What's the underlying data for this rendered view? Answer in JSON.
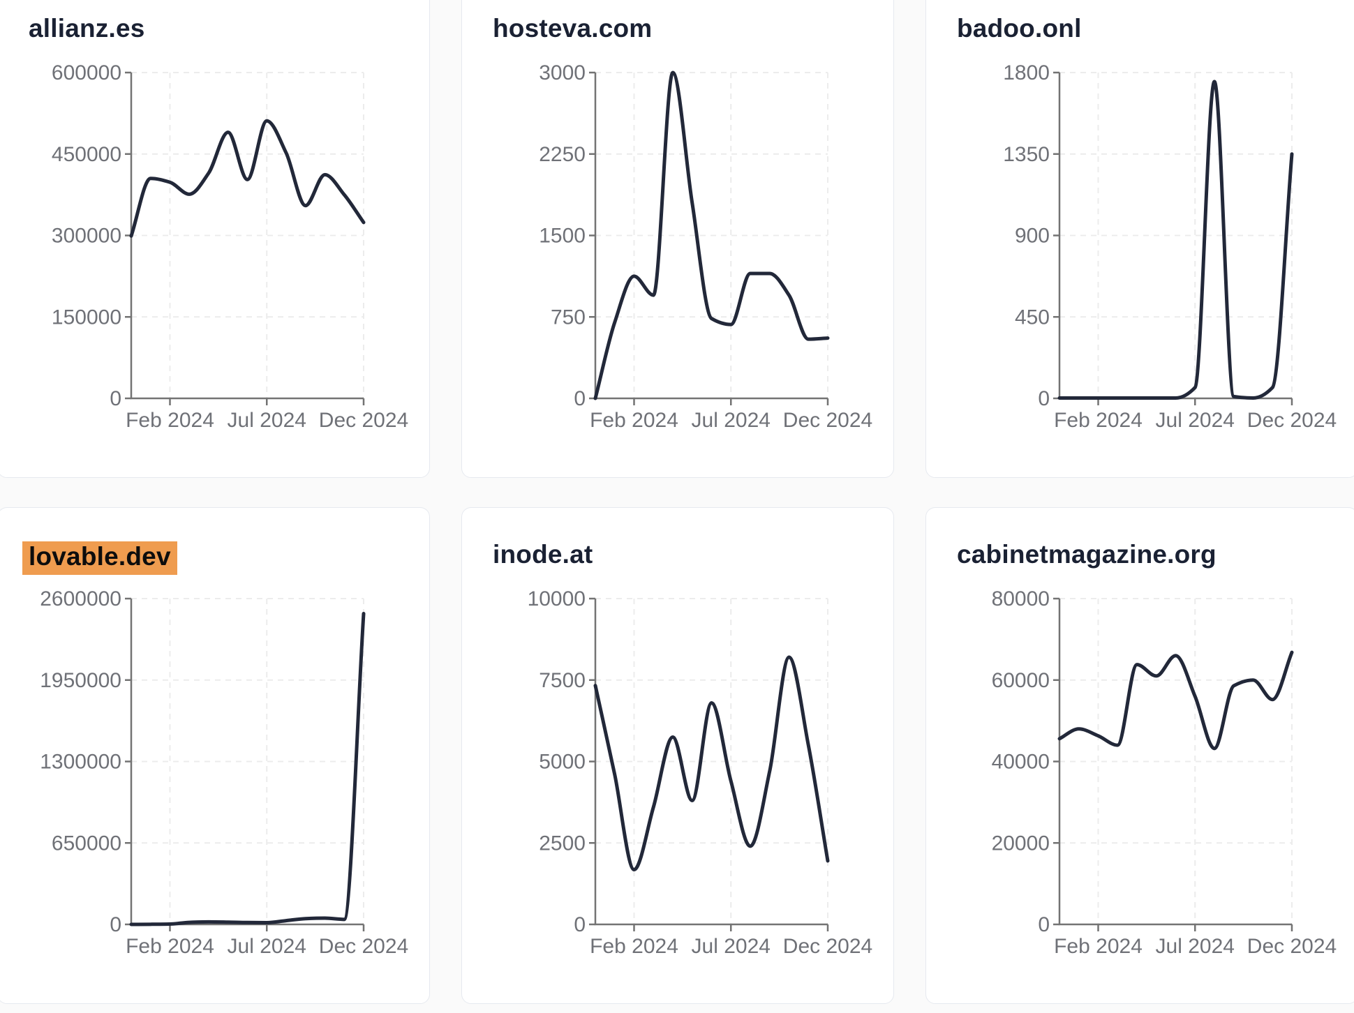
{
  "page": {
    "background": "#fafafa",
    "card": {
      "background": "#ffffff",
      "border_color": "#e6e9ef"
    }
  },
  "style": {
    "line_color": "#222839",
    "axis_color": "#737373",
    "tick_label_color": "#6f7177",
    "grid_color": "#ececec",
    "title_color": "#1a2133",
    "highlight_background": "#ef9c4f",
    "highlight_text_color": "#0d0d0d"
  },
  "x_axis": {
    "tick_labels": [
      "Feb 2024",
      "Jul 2024",
      "Dec 2024"
    ],
    "tick_positions": [
      0.16667,
      0.58333,
      1
    ]
  },
  "chart_data": [
    {
      "type": "line",
      "title": "allianz.es",
      "highlighted": false,
      "x": [
        "Dec 2023",
        "Jan 2024",
        "Feb 2024",
        "Mar 2024",
        "Apr 2024",
        "May 2024",
        "Jun 2024",
        "Jul 2024",
        "Aug 2024",
        "Sep 2024",
        "Oct 2024",
        "Nov 2024",
        "Dec 2024"
      ],
      "values": [
        299000,
        405000,
        398000,
        376000,
        415000,
        490000,
        403000,
        511000,
        452000,
        355000,
        412000,
        375000,
        324000
      ],
      "y_ticks": [
        0,
        150000,
        300000,
        450000,
        600000
      ],
      "ylim": [
        0,
        600000
      ],
      "x_tick_labels": [
        "Feb 2024",
        "Jul 2024",
        "Dec 2024"
      ],
      "grid": true,
      "legend": "none"
    },
    {
      "type": "line",
      "title": "hosteva.com",
      "highlighted": false,
      "x": [
        "Dec 2023",
        "Jan 2024",
        "Feb 2024",
        "Mar 2024",
        "Apr 2024",
        "May 2024",
        "Jun 2024",
        "Jul 2024",
        "Aug 2024",
        "Sep 2024",
        "Oct 2024",
        "Nov 2024",
        "Dec 2024"
      ],
      "values": [
        0,
        700,
        1125,
        950,
        3000,
        1800,
        735,
        680,
        1150,
        1150,
        950,
        545,
        555
      ],
      "y_ticks": [
        0,
        750,
        1500,
        2250,
        3000
      ],
      "ylim": [
        0,
        3000
      ],
      "x_tick_labels": [
        "Feb 2024",
        "Jul 2024",
        "Dec 2024"
      ],
      "grid": true,
      "legend": "none"
    },
    {
      "type": "line",
      "title": "badoo.onl",
      "highlighted": false,
      "x": [
        "Dec 2023",
        "Jan 2024",
        "Feb 2024",
        "Mar 2024",
        "Apr 2024",
        "May 2024",
        "Jun 2024",
        "Jul 2024",
        "Aug 2024",
        "Sep 2024",
        "Oct 2024",
        "Nov 2024",
        "Dec 2024"
      ],
      "values": [
        2,
        2,
        2,
        2,
        2,
        2,
        2,
        60,
        1750,
        10,
        2,
        60,
        1350
      ],
      "y_ticks": [
        0,
        450,
        900,
        1350,
        1800
      ],
      "ylim": [
        0,
        1800
      ],
      "x_tick_labels": [
        "Feb 2024",
        "Jul 2024",
        "Dec 2024"
      ],
      "grid": true,
      "legend": "none"
    },
    {
      "type": "line",
      "title": "lovable.dev",
      "highlighted": true,
      "x": [
        "Dec 2023",
        "Jan 2024",
        "Feb 2024",
        "Mar 2024",
        "Apr 2024",
        "May 2024",
        "Jun 2024",
        "Jul 2024",
        "Aug 2024",
        "Sep 2024",
        "Oct 2024",
        "Nov 2024",
        "Dec 2024"
      ],
      "values": [
        0,
        1000,
        3000,
        16000,
        20000,
        18000,
        15000,
        14000,
        30000,
        46000,
        50000,
        40000,
        2480000
      ],
      "y_ticks": [
        0,
        650000,
        1300000,
        1950000,
        2600000
      ],
      "ylim": [
        0,
        2600000
      ],
      "x_tick_labels": [
        "Feb 2024",
        "Jul 2024",
        "Dec 2024"
      ],
      "grid": true,
      "legend": "none"
    },
    {
      "type": "line",
      "title": "inode.at",
      "highlighted": false,
      "x": [
        "Dec 2023",
        "Jan 2024",
        "Feb 2024",
        "Mar 2024",
        "Apr 2024",
        "May 2024",
        "Jun 2024",
        "Jul 2024",
        "Aug 2024",
        "Sep 2024",
        "Oct 2024",
        "Nov 2024",
        "Dec 2024"
      ],
      "values": [
        7330,
        4600,
        1680,
        3600,
        5750,
        3800,
        6800,
        4400,
        2400,
        4700,
        8200,
        5500,
        1950
      ],
      "y_ticks": [
        0,
        2500,
        5000,
        7500,
        10000
      ],
      "ylim": [
        0,
        10000
      ],
      "x_tick_labels": [
        "Feb 2024",
        "Jul 2024",
        "Dec 2024"
      ],
      "grid": true,
      "legend": "none"
    },
    {
      "type": "line",
      "title": "cabinetmagazine.org",
      "highlighted": false,
      "x": [
        "Dec 2023",
        "Jan 2024",
        "Feb 2024",
        "Mar 2024",
        "Apr 2024",
        "May 2024",
        "Jun 2024",
        "Jul 2024",
        "Aug 2024",
        "Sep 2024",
        "Oct 2024",
        "Nov 2024",
        "Dec 2024"
      ],
      "values": [
        45600,
        48000,
        46300,
        44000,
        63800,
        61000,
        66000,
        56000,
        43200,
        58600,
        60000,
        55200,
        66800
      ],
      "y_ticks": [
        0,
        20000,
        40000,
        60000,
        80000
      ],
      "ylim": [
        0,
        80000
      ],
      "x_tick_labels": [
        "Feb 2024",
        "Jul 2024",
        "Dec 2024"
      ],
      "grid": true,
      "legend": "none"
    }
  ]
}
